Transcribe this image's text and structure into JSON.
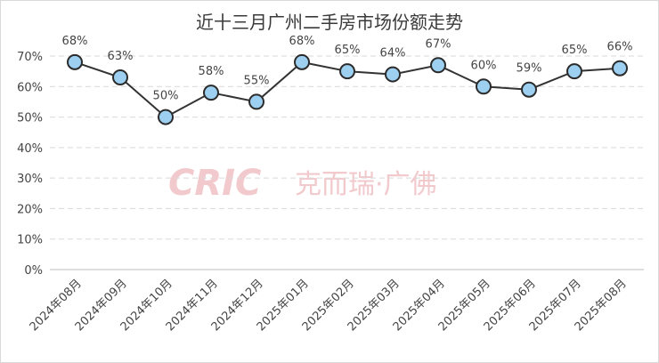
{
  "chart_data": {
    "type": "line",
    "title": "近十三月广州二手房市场份额走势",
    "categories": [
      "2024年08月",
      "2024年09月",
      "2024年10月",
      "2024年11月",
      "2024年12月",
      "2025年01月",
      "2025年02月",
      "2025年03月",
      "2025年04月",
      "2025年05月",
      "2025年06月",
      "2025年07月",
      "2025年08月"
    ],
    "values": [
      68,
      63,
      50,
      58,
      55,
      68,
      65,
      64,
      67,
      60,
      59,
      65,
      66
    ],
    "data_labels": [
      "68%",
      "63%",
      "50%",
      "58%",
      "55%",
      "68%",
      "65%",
      "64%",
      "67%",
      "60%",
      "59%",
      "65%",
      "66%"
    ],
    "y_ticks": [
      "0%",
      "10%",
      "20%",
      "30%",
      "40%",
      "50%",
      "60%",
      "70%"
    ],
    "ylim": [
      0,
      70
    ],
    "grid": true,
    "line_color": "#333333",
    "marker_fill": "#9dcff0",
    "marker_stroke": "#2b2b2b"
  },
  "watermark": {
    "logo": "CRIC",
    "text": "克而瑞·广佛"
  }
}
